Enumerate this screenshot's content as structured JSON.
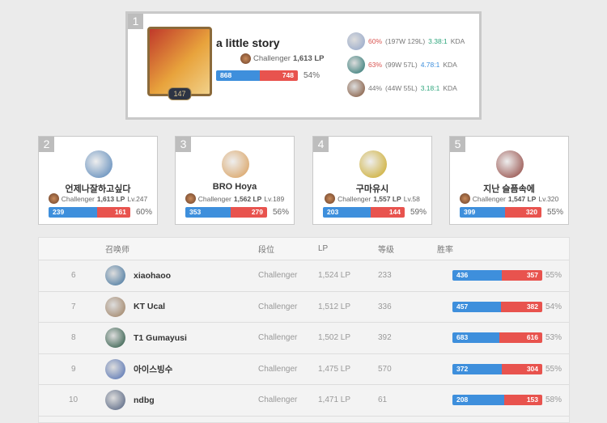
{
  "top": {
    "rank": "1",
    "name": "a little story",
    "tier": "Challenger",
    "lp": "1,613 LP",
    "level": "147",
    "wins": 868,
    "losses": 748,
    "winrate": "54%",
    "champions": [
      {
        "winrate": "60%",
        "record": "(197W 129L)",
        "kda": "3.38:1",
        "kda_suffix": "KDA",
        "wr_color": "red",
        "kda_color": "grn",
        "color": "#8fa3c8"
      },
      {
        "winrate": "63%",
        "record": "(99W 57L)",
        "kda": "4.78:1",
        "kda_suffix": "KDA",
        "wr_color": "red",
        "kda_color": "blu",
        "color": "#1f6f6b"
      },
      {
        "winrate": "44%",
        "record": "(44W 55L)",
        "kda": "3.18:1",
        "kda_suffix": "KDA",
        "wr_color": "",
        "kda_color": "grn",
        "color": "#7a4b2e"
      }
    ]
  },
  "cards": [
    {
      "rank": "2",
      "name": "언제나잘하고싶다",
      "tier": "Challenger",
      "lp": "1,613 LP",
      "level": "Lv.247",
      "wins": 239,
      "losses": 161,
      "winrate": "60%",
      "color": "#4d7fb5"
    },
    {
      "rank": "3",
      "name": "BRO Hoya",
      "tier": "Challenger",
      "lp": "1,562 LP",
      "level": "Lv.189",
      "wins": 353,
      "losses": 279,
      "winrate": "56%",
      "color": "#d89a52"
    },
    {
      "rank": "4",
      "name": "구마유시",
      "tier": "Challenger",
      "lp": "1,557 LP",
      "level": "Lv.58",
      "wins": 203,
      "losses": 144,
      "winrate": "59%",
      "color": "#c9a51a"
    },
    {
      "rank": "5",
      "name": "지난 슬픔속에",
      "tier": "Challenger",
      "lp": "1,547 LP",
      "level": "Lv.320",
      "wins": 399,
      "losses": 320,
      "winrate": "55%",
      "color": "#8a3a34"
    }
  ],
  "table": {
    "headers": {
      "summoner": "召唤师",
      "tier": "段位",
      "lp": "LP",
      "level": "等级",
      "winrate": "胜率"
    },
    "rows": [
      {
        "rank": "6",
        "name": "xiaohaoo",
        "tier": "Challenger",
        "lp": "1,524 LP",
        "level": "233",
        "wins": 436,
        "losses": 357,
        "winrate": "55%",
        "color": "#3a6e9a"
      },
      {
        "rank": "7",
        "name": "KT Ucal",
        "tier": "Challenger",
        "lp": "1,512 LP",
        "level": "336",
        "wins": 457,
        "losses": 382,
        "winrate": "54%",
        "color": "#9a7a5a"
      },
      {
        "rank": "8",
        "name": "T1 Gumayusi",
        "tier": "Challenger",
        "lp": "1,502 LP",
        "level": "392",
        "wins": 683,
        "losses": 616,
        "winrate": "53%",
        "color": "#1f4f3a"
      },
      {
        "rank": "9",
        "name": "아이스빙수",
        "tier": "Challenger",
        "lp": "1,475 LP",
        "level": "570",
        "wins": 372,
        "losses": 304,
        "winrate": "55%",
        "color": "#4a6ab0"
      },
      {
        "rank": "10",
        "name": "ndbg",
        "tier": "Challenger",
        "lp": "1,471 LP",
        "level": "61",
        "wins": 208,
        "losses": 153,
        "winrate": "58%",
        "color": "#4a5a7a"
      }
    ]
  },
  "colors": {
    "win": "#3e8fdc",
    "loss": "#e8534e"
  }
}
